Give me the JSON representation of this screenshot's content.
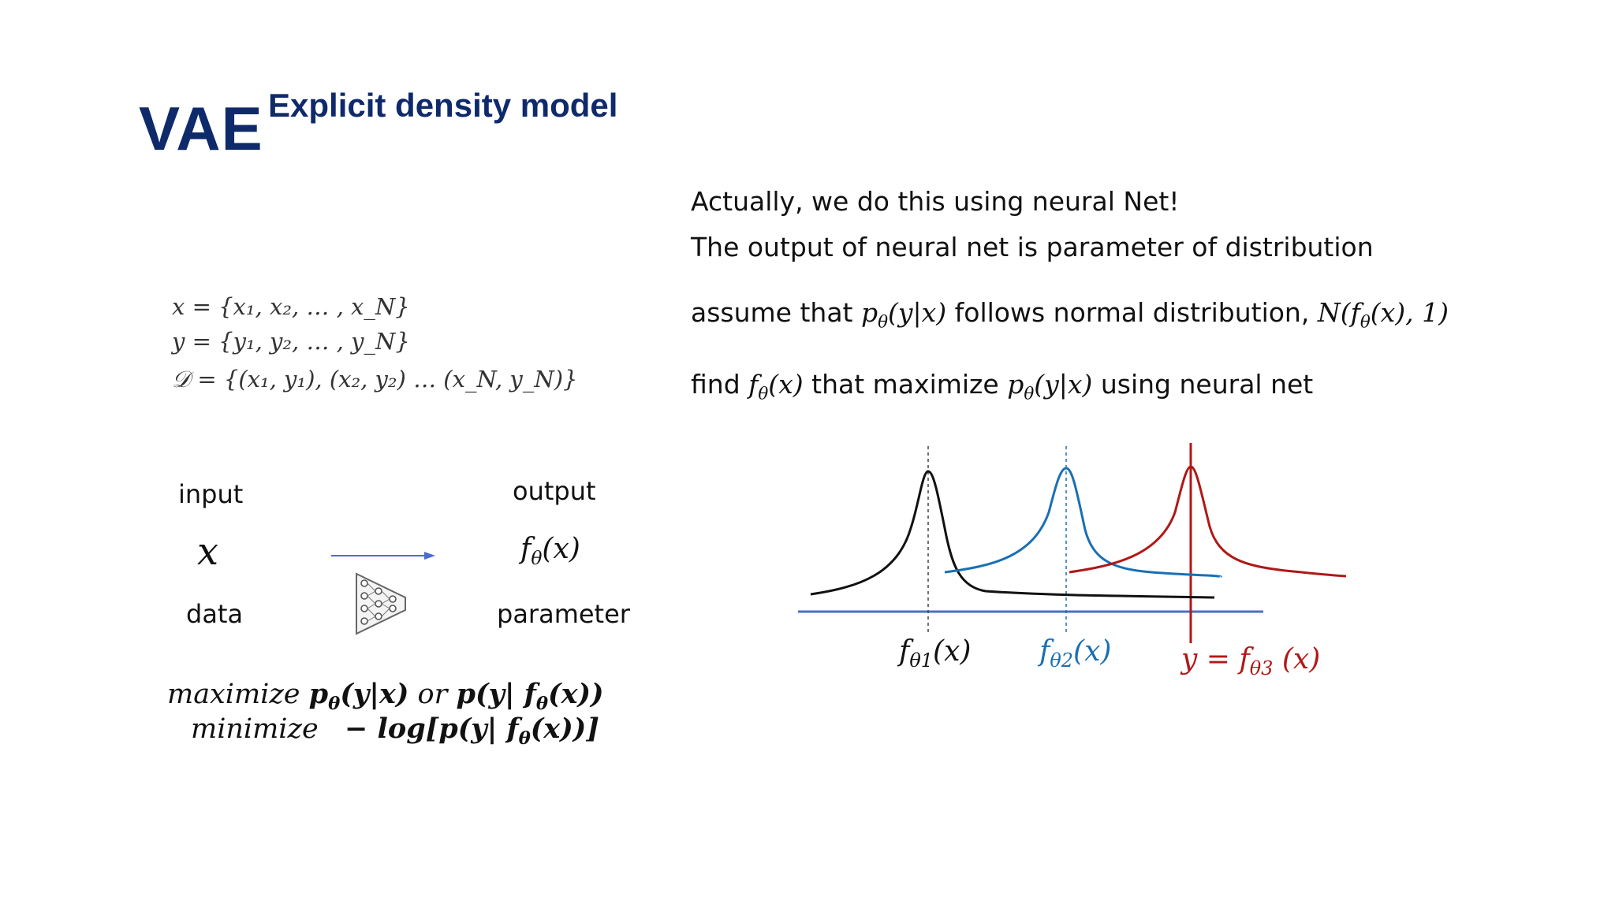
{
  "slide": {
    "title": "VAE",
    "subtitle": "Explicit density model"
  },
  "dataset": {
    "x_def": "x = {x₁, x₂, … , x_N}",
    "y_def": "y = {y₁, y₂, … , y_N}",
    "d_def": "𝒟 = {(x₁, y₁), (x₂, y₂) … (x_N, y_N)}"
  },
  "right_text": {
    "line1": "Actually, we do this using neural Net!",
    "line2": "The output of neural net is parameter of distribution",
    "line3_a": "assume that",
    "line3_math1": "p",
    "line3_math1_sub": "θ",
    "line3_math1_arg": "(y|x)",
    "line3_b": "follows normal distribution,",
    "line3_math2": "N(f",
    "line3_math2_sub": "θ",
    "line3_math2_arg": "(x), 1)",
    "line4_a": "find",
    "line4_math1": "f",
    "line4_math1_sub": "θ",
    "line4_math1_arg": "(x)",
    "line4_b": "that maximize",
    "line4_math2": "p",
    "line4_math2_sub": "θ",
    "line4_math2_arg": "(y|x)",
    "line4_c": "using neural net"
  },
  "diagram": {
    "input_label": "input",
    "input_symbol": "x",
    "data_label": "data",
    "output_label": "output",
    "output_symbol": "f",
    "output_symbol_sub": "θ",
    "output_symbol_arg": "(x)",
    "parameter_label": "parameter",
    "arrow_color": "#4a6fc4"
  },
  "objective": {
    "line1_a": "maximize",
    "line1_b": "p",
    "line1_b_sub": "θ",
    "line1_c": "(y|x)",
    "line1_d": "or",
    "line1_e": "p(y| f",
    "line1_e_sub": "θ",
    "line1_f": "(x))",
    "line2_a": "minimize",
    "line2_b": "− log[p(y| f",
    "line2_b_sub": "θ",
    "line2_c": "(x))]"
  },
  "plot": {
    "label1": "fθ1(x)",
    "label2": "fθ2(x)",
    "label3": "y = fθ3 (x)",
    "colors": {
      "curve1": "#111111",
      "curve2": "#1a6fb3",
      "curve3": "#b01818",
      "baseline": "#4a6fc4"
    }
  }
}
